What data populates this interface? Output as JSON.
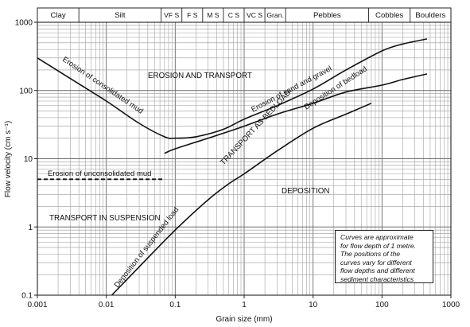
{
  "chart_data": {
    "type": "line",
    "xscale": "log",
    "yscale": "log",
    "xlim": [
      0.001,
      1000
    ],
    "ylim": [
      0.1,
      1000
    ],
    "xlabel": "Grain size (mm)",
    "ylabel": "Flow velocity (cm s⁻¹)",
    "x_ticks": [
      0.001,
      0.01,
      0.1,
      1,
      10,
      100,
      1000
    ],
    "x_tick_labels": [
      "0.001",
      "0.01",
      "0.1",
      "1",
      "10",
      "100",
      "1000"
    ],
    "y_ticks": [
      0.1,
      1,
      10,
      100,
      1000
    ],
    "y_tick_labels": [
      "0.1",
      "1",
      "10",
      "100",
      "1000"
    ],
    "grid": true,
    "size_classes": [
      {
        "label": "Clay",
        "from": 0.001,
        "to": 0.004
      },
      {
        "label": "Silt",
        "from": 0.004,
        "to": 0.0625
      },
      {
        "label": "VF S",
        "from": 0.0625,
        "to": 0.125
      },
      {
        "label": "F S",
        "from": 0.125,
        "to": 0.25
      },
      {
        "label": "M S",
        "from": 0.25,
        "to": 0.5
      },
      {
        "label": "C S",
        "from": 0.5,
        "to": 1
      },
      {
        "label": "VC S",
        "from": 1,
        "to": 2
      },
      {
        "label": "Gran.",
        "from": 2,
        "to": 4
      },
      {
        "label": "Pebbles",
        "from": 4,
        "to": 64
      },
      {
        "label": "Cobbles",
        "from": 64,
        "to": 256
      },
      {
        "label": "Boulders",
        "from": 256,
        "to": 1000
      }
    ],
    "series": [
      {
        "name": "Erosion curve",
        "style": "solid",
        "points": [
          [
            0.001,
            300
          ],
          [
            0.003,
            150
          ],
          [
            0.01,
            70
          ],
          [
            0.03,
            33
          ],
          [
            0.07,
            21
          ],
          [
            0.1,
            20
          ],
          [
            0.2,
            21
          ],
          [
            0.5,
            27
          ],
          [
            1,
            38
          ],
          [
            3,
            60
          ],
          [
            10,
            105
          ],
          [
            30,
            200
          ],
          [
            100,
            380
          ],
          [
            200,
            480
          ],
          [
            450,
            570
          ]
        ]
      },
      {
        "name": "Deposition of bedload",
        "style": "solid",
        "points": [
          [
            0.07,
            12
          ],
          [
            0.1,
            14
          ],
          [
            0.3,
            20
          ],
          [
            1,
            30
          ],
          [
            3,
            45
          ],
          [
            10,
            65
          ],
          [
            30,
            95
          ],
          [
            100,
            120
          ],
          [
            200,
            145
          ],
          [
            450,
            175
          ]
        ]
      },
      {
        "name": "Deposition of suspended load",
        "style": "solid",
        "points": [
          [
            0.012,
            0.1
          ],
          [
            0.03,
            0.26
          ],
          [
            0.1,
            0.9
          ],
          [
            0.3,
            2.5
          ],
          [
            0.6,
            4.3
          ],
          [
            1,
            6
          ],
          [
            3,
            13
          ],
          [
            10,
            28
          ],
          [
            30,
            45
          ],
          [
            70,
            65
          ]
        ]
      },
      {
        "name": "Erosion of unconsolidated mud",
        "style": "dashed",
        "points": [
          [
            0.001,
            5
          ],
          [
            0.065,
            5
          ]
        ]
      }
    ],
    "annotations": {
      "consolidated": "Erosion of consolidated mud",
      "sand_gravel": "Erosion of sand and gravel",
      "bedload": "Deposition of bedload",
      "suspended": "Deposition of suspended load",
      "unconsolidated": "Erosion of unconsolidated mud",
      "region_erosion": "EROSION AND TRANSPORT",
      "region_bedload": "TRANSPORT AS BEDLOAD",
      "region_suspension": "TRANSPORT IN SUSPENSION",
      "region_deposition": "DEPOSITION"
    },
    "note": [
      "Curves are approximate",
      "for flow depth of 1 metre.",
      "The positions of the",
      "curves vary for different",
      "flow depths and different",
      "sediment characteristics"
    ]
  }
}
